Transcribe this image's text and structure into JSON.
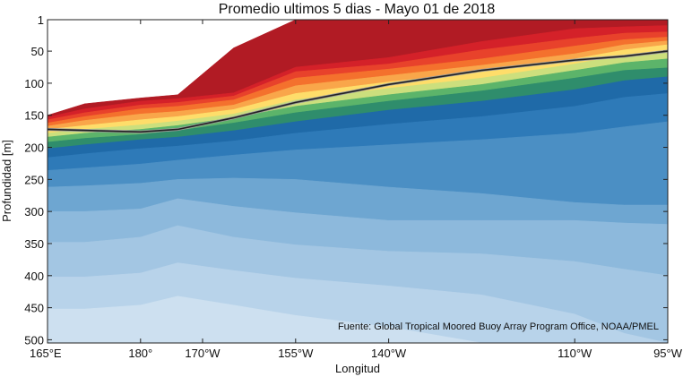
{
  "chart_data": {
    "type": "heatmap",
    "title": "Promedio ultimos 5 dias - Mayo 01 de 2018",
    "xlabel": "Longitud",
    "ylabel": "Profundidad [m]",
    "annotation": "Fuente: Global Tropical Moored Buoy Array Program Office, NOAA/PMEL",
    "x_ticks": [
      {
        "value": 165,
        "label": "165°E"
      },
      {
        "value": 180,
        "label": "180°"
      },
      {
        "value": 190,
        "label": "170°W"
      },
      {
        "value": 205,
        "label": "155°W"
      },
      {
        "value": 220,
        "label": "140°W"
      },
      {
        "value": 250,
        "label": "110°W"
      },
      {
        "value": 265,
        "label": "95°W"
      }
    ],
    "y_ticks": [
      {
        "value": 1,
        "label": "1"
      },
      {
        "value": 50,
        "label": "50"
      },
      {
        "value": 100,
        "label": "100"
      },
      {
        "value": 150,
        "label": "150"
      },
      {
        "value": 200,
        "label": "200"
      },
      {
        "value": 250,
        "label": "250"
      },
      {
        "value": 300,
        "label": "300"
      },
      {
        "value": 350,
        "label": "350"
      },
      {
        "value": 400,
        "label": "400"
      },
      {
        "value": 450,
        "label": "450"
      },
      {
        "value": 500,
        "label": "500"
      }
    ],
    "xlim": [
      165,
      265
    ],
    "ylim": [
      1,
      505
    ],
    "y_reversed": true,
    "grid": false,
    "longitudes": [
      165,
      171,
      180,
      186,
      195,
      205,
      220,
      235,
      250,
      258,
      265
    ],
    "levels": [
      {
        "color": "#b11b24",
        "depth": [
          150,
          132,
          123,
          118,
          45,
          1,
          1,
          1,
          1,
          1,
          1
        ]
      },
      {
        "color": "#d42129",
        "depth": [
          153,
          140,
          128,
          124,
          115,
          75,
          60,
          35,
          15,
          12,
          10
        ]
      },
      {
        "color": "#e8422b",
        "depth": [
          157,
          146,
          134,
          130,
          120,
          82,
          70,
          48,
          30,
          22,
          20
        ]
      },
      {
        "color": "#f4712d",
        "depth": [
          162,
          152,
          140,
          136,
          126,
          92,
          78,
          62,
          42,
          32,
          28
        ]
      },
      {
        "color": "#f9a64a",
        "depth": [
          167,
          158,
          148,
          144,
          134,
          104,
          88,
          72,
          54,
          40,
          34
        ]
      },
      {
        "color": "#fedd6a",
        "depth": [
          172,
          166,
          157,
          152,
          141,
          116,
          98,
          82,
          62,
          48,
          40
        ]
      },
      {
        "color": "#ccdf7d",
        "depth": [
          178,
          172,
          165,
          159,
          148,
          126,
          108,
          92,
          70,
          56,
          50
        ]
      },
      {
        "color": "#5cb46a",
        "depth": [
          184,
          178,
          172,
          166,
          154,
          136,
          118,
          102,
          80,
          68,
          62
        ]
      },
      {
        "color": "#2f8d6c",
        "depth": [
          192,
          186,
          180,
          174,
          162,
          146,
          128,
          112,
          92,
          80,
          76
        ]
      },
      {
        "color": "#1f6aa8",
        "depth": [
          202,
          196,
          188,
          184,
          174,
          160,
          142,
          128,
          110,
          96,
          90
        ]
      },
      {
        "color": "#2e7ab8",
        "depth": [
          216,
          210,
          202,
          198,
          190,
          178,
          164,
          152,
          136,
          122,
          116
        ]
      },
      {
        "color": "#4b8fc4",
        "depth": [
          236,
          232,
          226,
          220,
          212,
          204,
          196,
          188,
          178,
          168,
          160
        ]
      },
      {
        "color": "#6ea6d1",
        "depth": [
          262,
          260,
          256,
          250,
          248,
          250,
          262,
          272,
          286,
          290,
          290
        ]
      },
      {
        "color": "#8db9dc",
        "depth": [
          300,
          300,
          296,
          280,
          292,
          302,
          314,
          314,
          314,
          318,
          320
        ]
      },
      {
        "color": "#a3c6e3",
        "depth": [
          348,
          348,
          340,
          322,
          340,
          352,
          362,
          366,
          378,
          390,
          400
        ]
      },
      {
        "color": "#b8d3ea",
        "depth": [
          402,
          402,
          396,
          380,
          392,
          404,
          416,
          430,
          460,
          490,
          505
        ]
      },
      {
        "color": "#cde0f0",
        "depth": [
          452,
          452,
          446,
          432,
          446,
          462,
          480,
          505,
          505,
          505,
          505
        ]
      },
      {
        "color": "#dce9f5",
        "depth": [
          505,
          505,
          505,
          505,
          505,
          505,
          505,
          505,
          505,
          505,
          505
        ]
      }
    ],
    "isotherm_line": {
      "color": "#222222",
      "points": [
        {
          "x": 165,
          "y": 172
        },
        {
          "x": 180,
          "y": 176
        },
        {
          "x": 186,
          "y": 172
        },
        {
          "x": 195,
          "y": 154
        },
        {
          "x": 205,
          "y": 130
        },
        {
          "x": 220,
          "y": 102
        },
        {
          "x": 235,
          "y": 80
        },
        {
          "x": 250,
          "y": 64
        },
        {
          "x": 258,
          "y": 58
        },
        {
          "x": 265,
          "y": 50
        }
      ]
    }
  }
}
